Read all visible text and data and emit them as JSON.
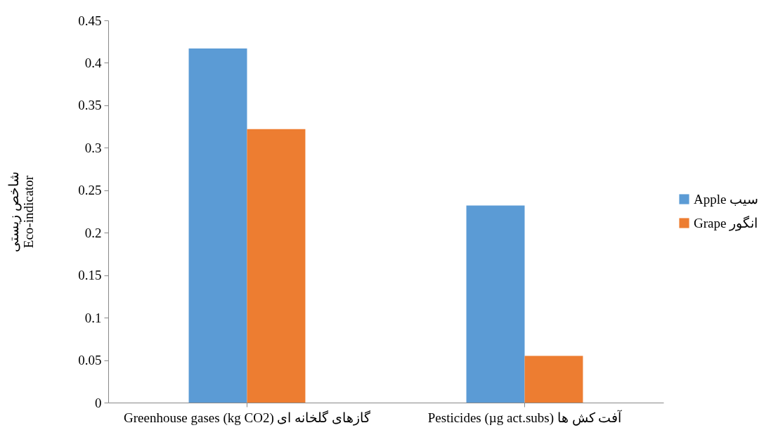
{
  "chart_data": {
    "type": "bar",
    "ylabel": "شاخص زیستی\nEco-indicator",
    "categories": [
      "Greenhouse gases (kg CO2) گازهای گلخانه ای",
      "Pesticides (µg act.subs) آفت کش ها"
    ],
    "series": [
      {
        "name": "Apple سیب",
        "color": "#5b9bd5",
        "values": [
          0.417,
          0.232
        ]
      },
      {
        "name": "Grape انگور",
        "color": "#ed7d31",
        "values": [
          0.322,
          0.055
        ]
      }
    ],
    "ylim": [
      0,
      0.45
    ],
    "yticks": [
      0,
      0.05,
      0.1,
      0.15,
      0.2,
      0.25,
      0.3,
      0.35,
      0.4,
      0.45
    ],
    "grid": false,
    "legend": "right"
  }
}
